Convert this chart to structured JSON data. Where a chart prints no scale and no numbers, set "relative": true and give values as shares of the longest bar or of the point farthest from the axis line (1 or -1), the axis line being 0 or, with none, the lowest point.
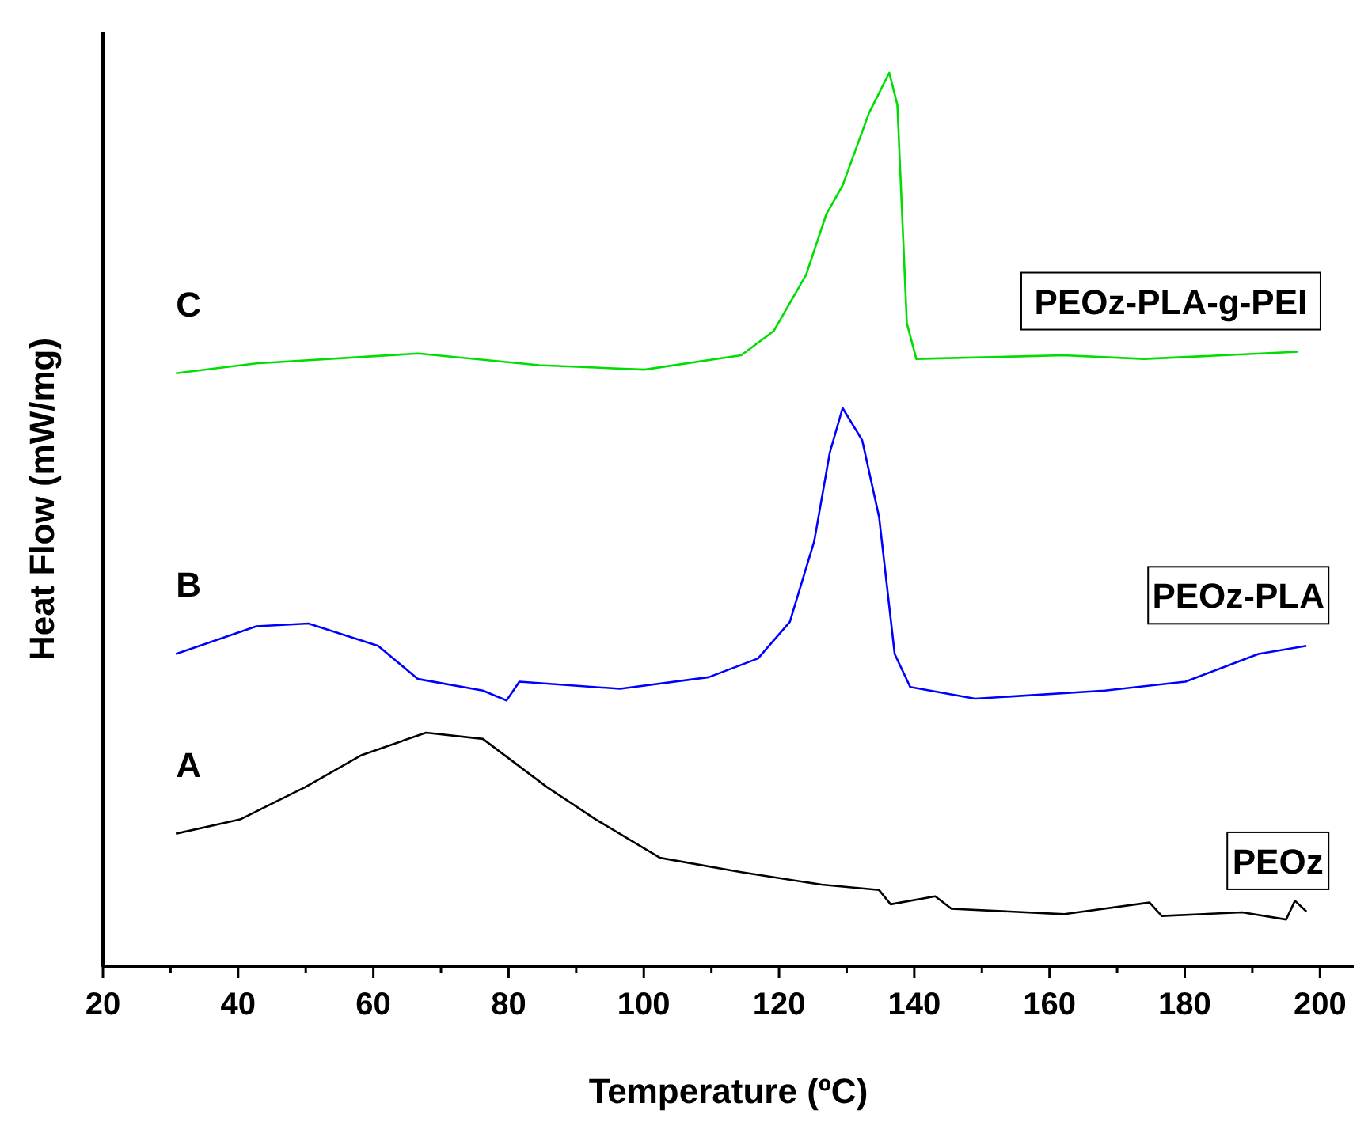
{
  "chart_data": {
    "type": "line",
    "relative": true,
    "xlabel": "Temperature (ºC)",
    "ylabel": "Heat Flow (mW/mg)",
    "xlim": [
      20,
      205
    ],
    "xticks": [
      20,
      {
        "value": 30,
        "label": null
      },
      40,
      {
        "value": 50,
        "label": null
      },
      60,
      {
        "value": 70,
        "label": null
      },
      80,
      {
        "value": 90,
        "label": null
      },
      100,
      {
        "value": 110,
        "label": null
      },
      120,
      {
        "value": 130,
        "label": null
      },
      140,
      {
        "value": 150,
        "label": null
      },
      160,
      {
        "value": 170,
        "label": null
      },
      180,
      {
        "value": 190,
        "label": null
      },
      200
    ],
    "legend": false,
    "grid": false,
    "series": [
      {
        "name": "PEOz",
        "color": "#000000",
        "x": [
          30.8,
          40.3,
          49.9,
          58.3,
          67.8,
          76.2,
          85.7,
          92.9,
          102.4,
          114.4,
          126.3,
          134.8,
          136.5,
          143.1,
          145.5,
          162.2,
          174.8,
          176.6,
          188.5,
          195,
          196.3,
          198
        ],
        "values": [
          0.149,
          0.165,
          0.201,
          0.237,
          0.262,
          0.255,
          0.201,
          0.165,
          0.122,
          0.106,
          0.092,
          0.086,
          0.07,
          0.079,
          0.065,
          0.059,
          0.072,
          0.057,
          0.061,
          0.053,
          0.074,
          0.062
        ]
      },
      {
        "name": "PEOz-PLA",
        "color": "#0000ff",
        "x": [
          30.8,
          42.7,
          50.4,
          60.7,
          66.6,
          76.2,
          79.7,
          81.6,
          96.5,
          109.6,
          116.9,
          121.6,
          125.2,
          127.5,
          129.4,
          132.3,
          134.8,
          137.1,
          139.4,
          149,
          168.2,
          180.1,
          190.9,
          198
        ],
        "values": [
          0.35,
          0.381,
          0.384,
          0.359,
          0.322,
          0.309,
          0.298,
          0.319,
          0.311,
          0.324,
          0.345,
          0.386,
          0.476,
          0.575,
          0.625,
          0.589,
          0.503,
          0.35,
          0.313,
          0.3,
          0.309,
          0.319,
          0.35,
          0.359
        ]
      },
      {
        "name": "PEOz-PLA-g-PEI",
        "color": "#00dd00",
        "x": [
          30.8,
          42.7,
          66.6,
          84.5,
          100.1,
          114.4,
          119.2,
          124,
          127,
          129.4,
          133.3,
          136.3,
          137.5,
          138.9,
          140.3,
          162,
          174,
          196.8
        ],
        "values": [
          0.664,
          0.675,
          0.686,
          0.673,
          0.668,
          0.684,
          0.711,
          0.774,
          0.842,
          0.874,
          0.955,
          1,
          0.964,
          0.72,
          0.68,
          0.684,
          0.68,
          0.688
        ]
      }
    ],
    "annotations": [
      "A",
      "B",
      "C"
    ]
  }
}
